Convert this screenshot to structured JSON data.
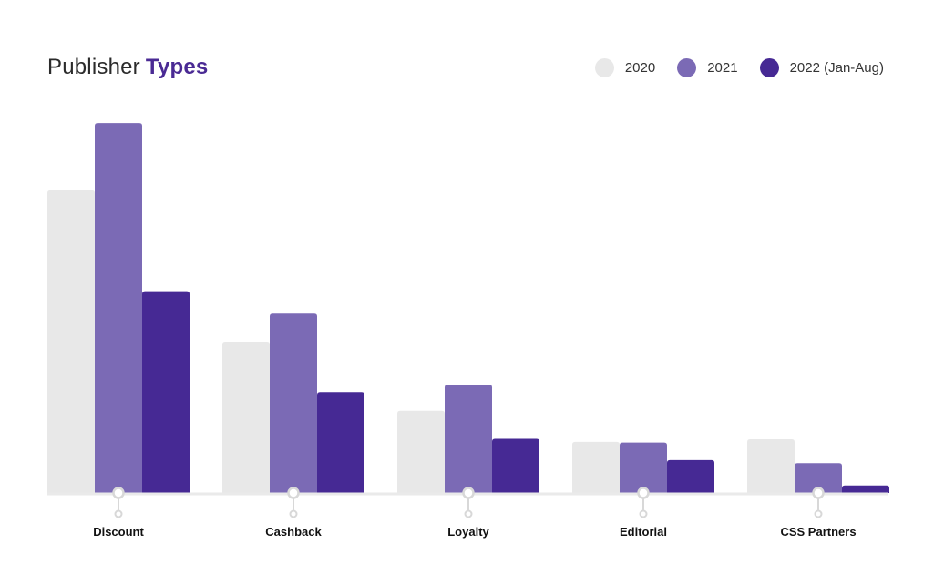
{
  "header": {
    "title_plain": "Publisher",
    "title_accent": "Types"
  },
  "colors": {
    "title_accent": "#4a2a94",
    "series_2020": "#e8e8e8",
    "series_2021": "#7b6ab5",
    "series_2022": "#462994",
    "axis": "#eaeaea",
    "tick_marker": "#d8d8d8"
  },
  "legend": [
    {
      "label": "2020",
      "color": "#e8e8e8"
    },
    {
      "label": "2021",
      "color": "#7b6ab5"
    },
    {
      "label": "2022 (Jan-Aug)",
      "color": "#462994"
    }
  ],
  "chart_data": {
    "type": "bar",
    "title": "Publisher Types",
    "xlabel": "",
    "ylabel": "",
    "categories": [
      "Discount",
      "Cashback",
      "Loyalty",
      "Editorial",
      "CSS Partners"
    ],
    "series": [
      {
        "name": "2020",
        "color": "#e8e8e8",
        "values": [
          81,
          40.5,
          22,
          13.7,
          14.4
        ]
      },
      {
        "name": "2021",
        "color": "#7b6ab5",
        "values": [
          99,
          48,
          29,
          13.5,
          8
        ]
      },
      {
        "name": "2022 (Jan-Aug)",
        "color": "#462994",
        "values": [
          54,
          27,
          14.5,
          8.8,
          2
        ]
      }
    ],
    "ylim": [
      0,
      100
    ],
    "grid": false,
    "legend_position": "top-right"
  }
}
